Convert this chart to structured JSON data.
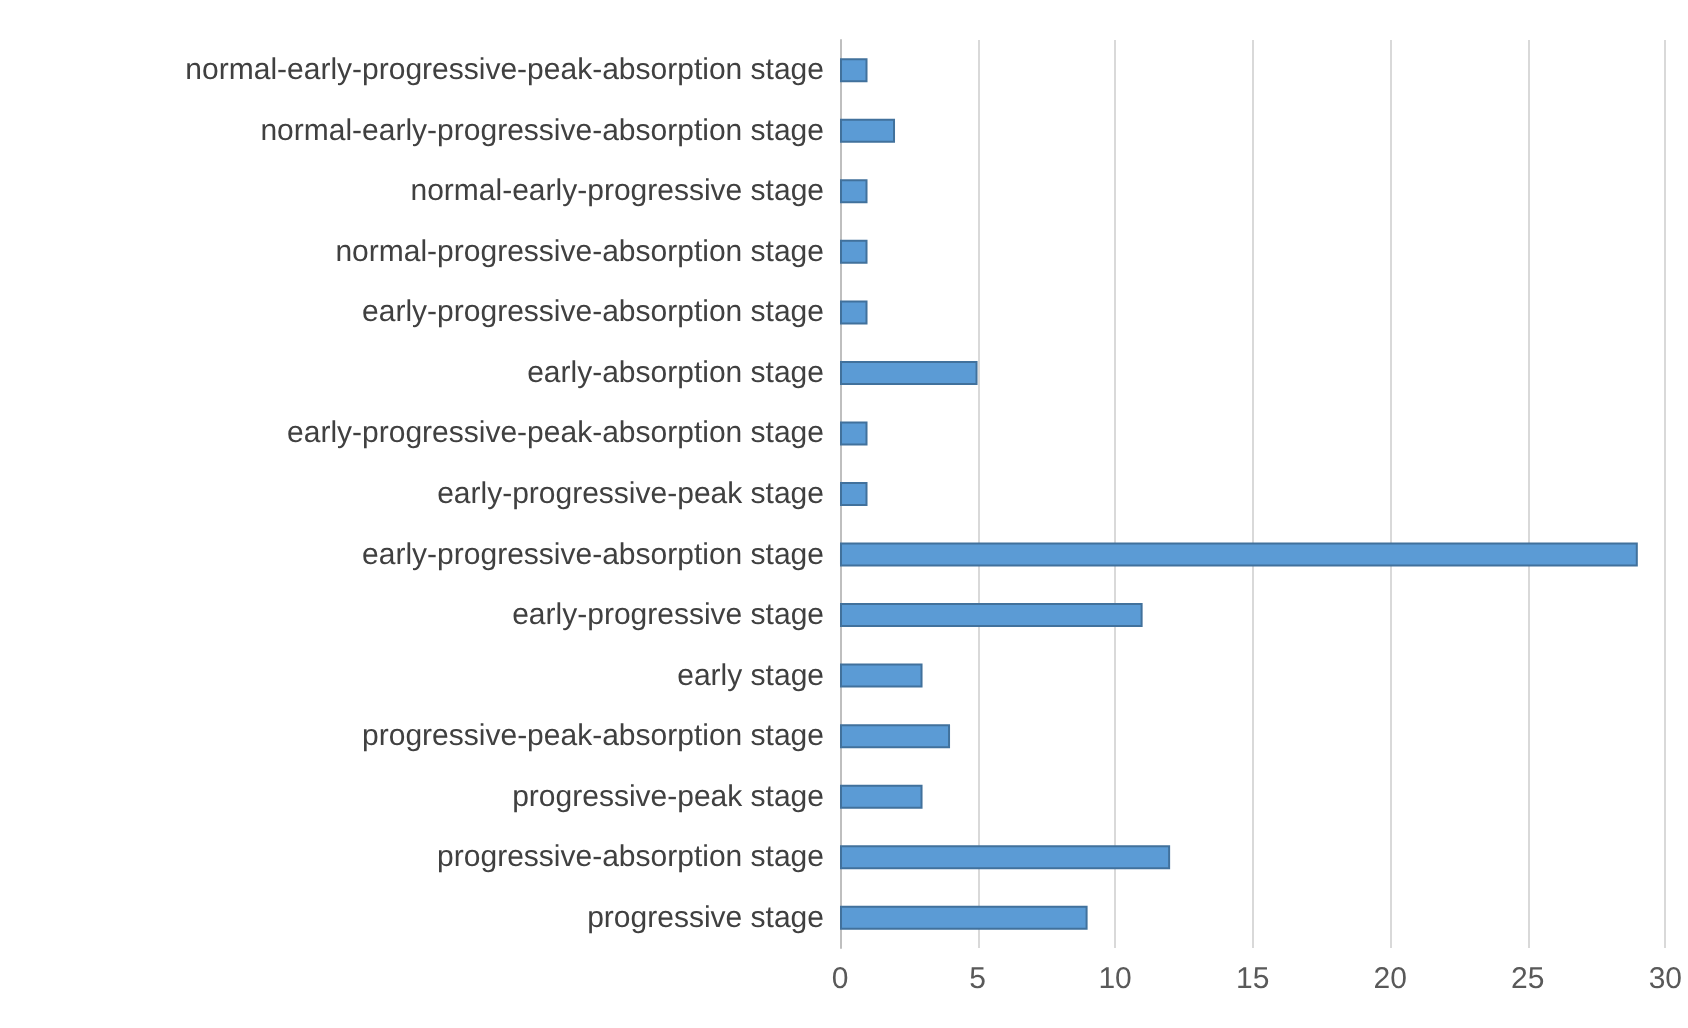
{
  "chart_data": {
    "type": "bar",
    "orientation": "horizontal",
    "categories": [
      "normal-early-progressive-peak-absorption stage",
      "normal-early-progressive-absorption stage",
      "normal-early-progressive stage",
      "normal-progressive-absorption stage",
      "early-progressive-absorption stage",
      "early-absorption stage",
      "early-progressive-peak-absorption stage",
      "early-progressive-peak stage",
      "early-progressive-absorption stage",
      "early-progressive stage",
      "early stage",
      "progressive-peak-absorption stage",
      "progressive-peak stage",
      "progressive-absorption stage",
      "progressive stage"
    ],
    "values": [
      1,
      2,
      1,
      1,
      1,
      5,
      1,
      1,
      29,
      11,
      3,
      4,
      3,
      12,
      9
    ],
    "color": "#5b9bd5",
    "xlim": [
      0,
      30
    ],
    "xticks": [
      0,
      5,
      10,
      15,
      20,
      25,
      30
    ],
    "grid": "x"
  }
}
